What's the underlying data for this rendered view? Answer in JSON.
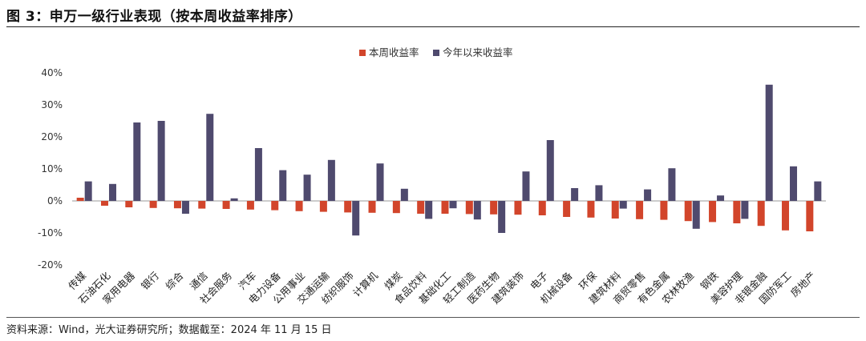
{
  "figure_title": "图 3：申万一级行业表现（按本周收益率排序）",
  "source_note": "资料来源：Wind，光大证券研究所；数据截至：2024 年 11 月 15 日",
  "colors": {
    "weekly": "#D2452B",
    "ytd": "#4F4A6E",
    "zero_line": "#999999"
  },
  "chart_data": {
    "type": "bar",
    "ylim": [
      -20,
      40
    ],
    "yticks": [
      -20,
      -10,
      0,
      10,
      20,
      30,
      40
    ],
    "ytick_labels": [
      "-20%",
      "-10%",
      "0%",
      "10%",
      "20%",
      "30%",
      "40%"
    ],
    "legend_position": "top-center",
    "grid": false,
    "categories": [
      "传媒",
      "石油石化",
      "家用电器",
      "银行",
      "综合",
      "通信",
      "社会服务",
      "汽车",
      "电力设备",
      "公用事业",
      "交通运输",
      "纺织服饰",
      "计算机",
      "煤炭",
      "食品饮料",
      "基础化工",
      "轻工制造",
      "医药生物",
      "建筑装饰",
      "电子",
      "机械设备",
      "环保",
      "建筑材料",
      "商贸零售",
      "有色金属",
      "农林牧渔",
      "钢铁",
      "美容护理",
      "非银金融",
      "国防军工",
      "房地产"
    ],
    "series": [
      {
        "name": "本周收益率",
        "values": [
          1.0,
          -1.5,
          -2.0,
          -2.2,
          -2.3,
          -2.4,
          -2.5,
          -2.7,
          -2.9,
          -3.2,
          -3.4,
          -3.6,
          -3.7,
          -3.8,
          -4.0,
          -4.0,
          -4.1,
          -4.2,
          -4.3,
          -4.5,
          -5.0,
          -5.2,
          -5.5,
          -5.7,
          -5.9,
          -6.3,
          -6.6,
          -7.0,
          -7.8,
          -9.2,
          -9.5
        ]
      },
      {
        "name": "今年以来收益率",
        "values": [
          6.1,
          5.3,
          24.5,
          25.0,
          -4.0,
          27.2,
          0.8,
          16.5,
          9.6,
          8.2,
          12.8,
          -10.8,
          11.7,
          3.8,
          -5.6,
          -2.3,
          -5.8,
          -10.0,
          9.2,
          19.0,
          4.0,
          4.9,
          -2.4,
          3.6,
          10.2,
          -8.7,
          1.7,
          -5.6,
          36.3,
          10.8,
          6.1
        ]
      }
    ]
  }
}
